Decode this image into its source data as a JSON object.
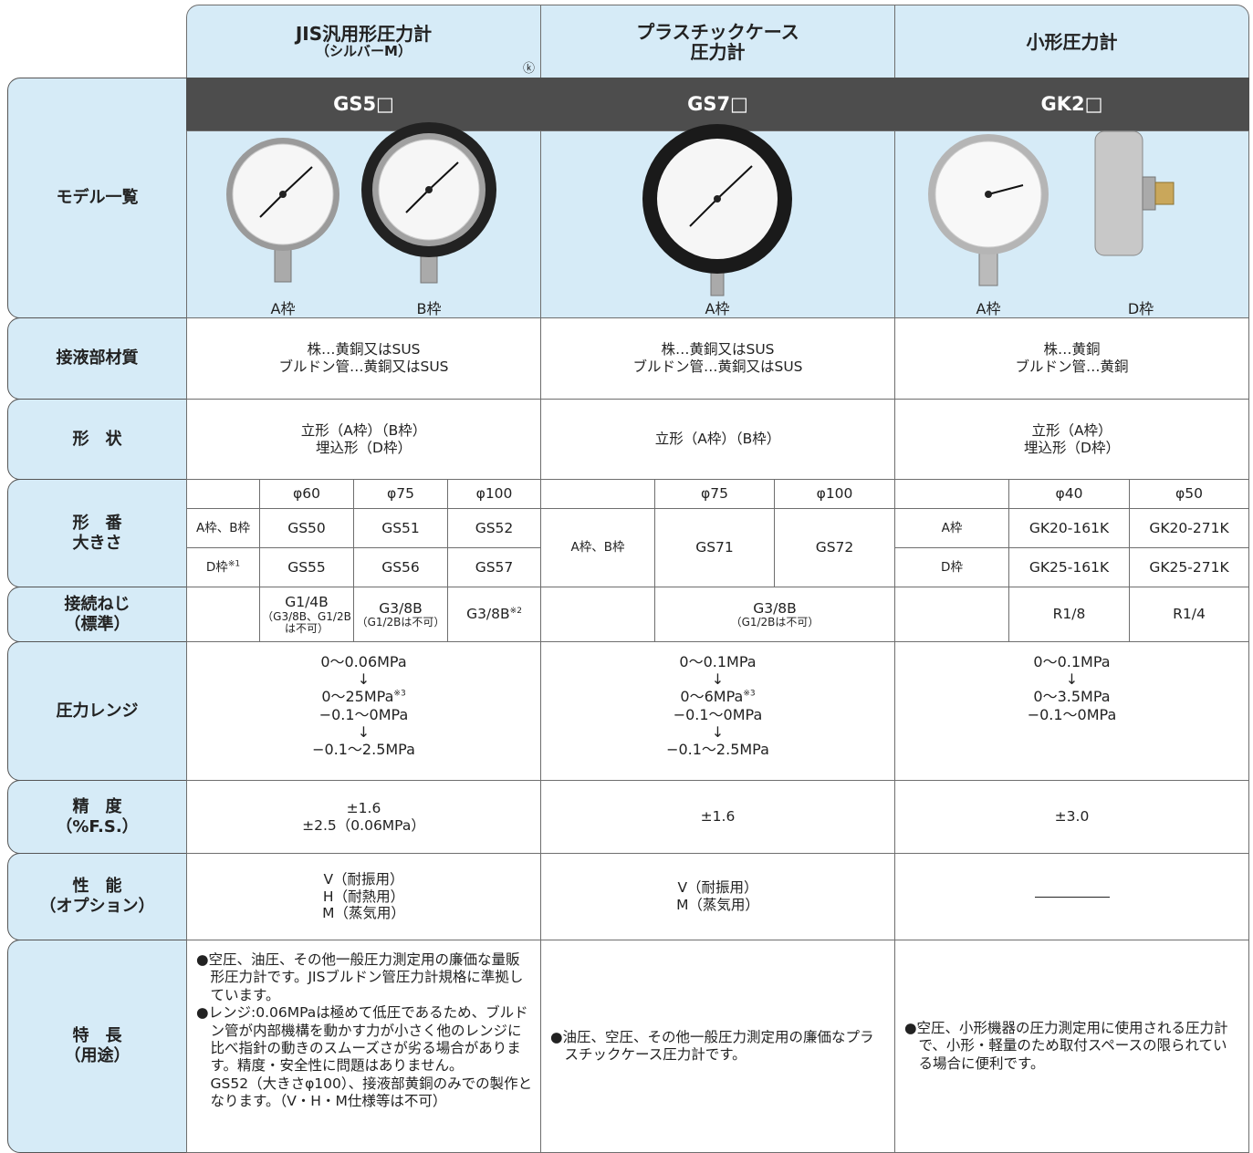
{
  "header": {
    "columns": [
      {
        "title": "JIS汎用形圧力計",
        "subtitle": "（シルバーM）",
        "mark": "ⓚ"
      },
      {
        "title": "プラスチックケース\n圧力計"
      },
      {
        "title": "小形圧力計"
      }
    ]
  },
  "models": {
    "label": "モデル一覧",
    "codes": [
      "GS5□",
      "GS7□",
      "GK2□"
    ],
    "image_labels": [
      [
        "A枠",
        "B枠"
      ],
      [
        "A枠"
      ],
      [
        "A枠",
        "D枠"
      ]
    ]
  },
  "material": {
    "label": "接液部材質",
    "cells": [
      "株…黄銅又はSUS\nブルドン管…黄銅又はSUS",
      "株…黄銅又はSUS\nブルドン管…黄銅又はSUS",
      "株…黄銅\nブルドン管…黄銅"
    ]
  },
  "shape": {
    "label": "形　状",
    "cells": [
      "立形（A枠）（B枠）\n埋込形（D枠）",
      "立形（A枠）（B枠）",
      "立形（A枠）\n埋込形（D枠）"
    ]
  },
  "model_size": {
    "label": "形　番\n大きさ",
    "groups": [
      {
        "sizes": [
          "φ60",
          "φ75",
          "φ100"
        ],
        "rows": [
          {
            "frame": "A枠、B枠",
            "models": [
              "GS50",
              "GS51",
              "GS52"
            ]
          },
          {
            "frame": {
              "text": "D枠",
              "note": "※1"
            },
            "models": [
              "GS55",
              "GS56",
              "GS57"
            ]
          }
        ]
      },
      {
        "sizes": [
          "φ75",
          "φ100"
        ],
        "rows": [
          {
            "frame": "A枠、B枠",
            "models": [
              "GS71",
              "GS72"
            ]
          }
        ]
      },
      {
        "sizes": [
          "φ40",
          "φ50"
        ],
        "rows": [
          {
            "frame": "A枠",
            "models": [
              "GK20-161K",
              "GK20-271K"
            ]
          },
          {
            "frame": "D枠",
            "models": [
              "GK25-161K",
              "GK25-271K"
            ]
          }
        ]
      }
    ]
  },
  "connection": {
    "label": "接続ねじ\n（標準）",
    "groups": [
      [
        {
          "text": "G1/4B",
          "sub": "（G3/8B、G1/2B\nは不可）"
        },
        {
          "text": "G3/8B",
          "sub": "（G1/2Bは不可）"
        },
        {
          "text": "G3/8B",
          "note": "※2"
        }
      ],
      [
        {
          "text": "G3/8B",
          "sub": "（G1/2Bは不可）"
        }
      ],
      [
        "R1/8",
        "R1/4"
      ]
    ]
  },
  "pressure_range": {
    "label": "圧力レンジ",
    "cells": [
      [
        "0〜0.06MPa",
        "↓",
        {
          "text": "0〜25MPa",
          "note": "※3"
        },
        "−0.1〜0MPa",
        "↓",
        "−0.1〜2.5MPa"
      ],
      [
        "0〜0.1MPa",
        "↓",
        {
          "text": "0〜6MPa",
          "note": "※3"
        },
        "−0.1〜0MPa",
        "↓",
        "−0.1〜2.5MPa"
      ],
      [
        "0〜0.1MPa",
        "↓",
        "0〜3.5MPa",
        "−0.1〜0MPa"
      ]
    ]
  },
  "accuracy": {
    "label": "精　度\n（%F.S.）",
    "cells": [
      "±1.6\n±2.5（0.06MPa）",
      "±1.6",
      "±3.0"
    ]
  },
  "performance": {
    "label": "性　能\n（オプション）",
    "cells": [
      "V（耐振用）\nH（耐熱用）\nM（蒸気用）",
      "V（耐振用）\nM（蒸気用）"
    ]
  },
  "features": {
    "label": "特　長\n（用途）",
    "cells": [
      [
        "●空圧、油圧、その他一般圧力測定用の廉価な量販形圧力計です。JISブルドン管圧力計規格に準拠しています。",
        "●レンジ:0.06MPaは極めて低圧であるため、ブルドン管が内部機構を動かす力が小さく他のレンジに比べ指針の動きのスムーズさが劣る場合があります。精度・安全性に問題はありません。",
        "GS52（大きさφ100）、接液部黄銅のみでの製作となります。（V・H・M仕様等は不可）"
      ],
      [
        "●油圧、空圧、その他一般圧力測定用の廉価なプラスチックケース圧力計です。"
      ],
      [
        "●空圧、小形機器の圧力測定用に使用される圧力計で、小形・軽量のため取付スペースの限られている場合に便利です。"
      ]
    ]
  }
}
